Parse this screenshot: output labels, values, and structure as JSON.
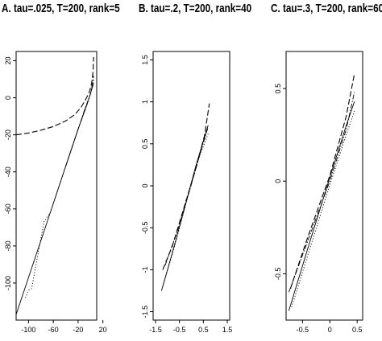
{
  "chart_data": [
    {
      "type": "line",
      "title": "A. tau=.025, T=200, rank=5",
      "xlim": [
        -120,
        10
      ],
      "ylim": [
        -120,
        25
      ],
      "xticks": [
        -100,
        -60,
        -20,
        20
      ],
      "yticks": [
        20,
        0,
        -20,
        -40,
        -60,
        -80,
        -100
      ],
      "series": [
        {
          "style": "solid",
          "points": [
            [
              -120,
              -117
            ],
            [
              -100,
              -97
            ],
            [
              -80,
              -77
            ],
            [
              -60,
              -57
            ],
            [
              -40,
              -37
            ],
            [
              -20,
              -17
            ],
            [
              -5,
              -3
            ],
            [
              5,
              8
            ]
          ]
        },
        {
          "style": "dotted",
          "points": [
            [
              -105,
              -108
            ],
            [
              -100,
              -104
            ],
            [
              -95,
              -103
            ],
            [
              -85,
              -85
            ],
            [
              -75,
              -67
            ],
            [
              -65,
              -62
            ],
            [
              -50,
              -47
            ],
            [
              -30,
              -27
            ],
            [
              -10,
              -7
            ],
            [
              0,
              2
            ],
            [
              5,
              10
            ]
          ]
        },
        {
          "style": "dashdot",
          "points": [
            [
              -40,
              -37
            ],
            [
              -20,
              -17
            ],
            [
              -8,
              -5
            ],
            [
              0,
              2
            ],
            [
              5,
              12
            ]
          ]
        },
        {
          "style": "longdash",
          "points": [
            [
              -120,
              -20
            ],
            [
              -100,
              -19
            ],
            [
              -80,
              -17.5
            ],
            [
              -60,
              -15.5
            ],
            [
              -40,
              -12.5
            ],
            [
              -25,
              -9
            ],
            [
              -15,
              -5
            ],
            [
              -8,
              -1
            ],
            [
              -2,
              3
            ],
            [
              2,
              8
            ],
            [
              4,
              14
            ],
            [
              5,
              22
            ]
          ]
        }
      ]
    },
    {
      "type": "line",
      "title": "B. tau=.2, T=200, rank=40",
      "xlim": [
        -1.6,
        1.6
      ],
      "ylim": [
        -1.6,
        1.6
      ],
      "xticks": [
        -1.5,
        -0.5,
        0.5,
        1.5
      ],
      "yticks": [
        1.5,
        1.0,
        0.5,
        0.0,
        -0.5,
        -1.0,
        -1.5
      ],
      "series": [
        {
          "style": "solid",
          "points": [
            [
              -1.25,
              -1.25
            ],
            [
              -0.8,
              -0.8
            ],
            [
              -0.3,
              -0.28
            ],
            [
              0.2,
              0.25
            ],
            [
              0.7,
              0.72
            ]
          ]
        },
        {
          "style": "dotted",
          "points": [
            [
              -1.2,
              -1.2
            ],
            [
              -0.7,
              -0.72
            ],
            [
              -0.2,
              -0.18
            ],
            [
              0.3,
              0.32
            ],
            [
              0.7,
              0.62
            ]
          ]
        },
        {
          "style": "dashdot",
          "points": [
            [
              -1.1,
              -0.95
            ],
            [
              -0.6,
              -0.55
            ],
            [
              -0.1,
              -0.08
            ],
            [
              0.4,
              0.42
            ],
            [
              0.7,
              0.7
            ]
          ]
        },
        {
          "style": "longdash",
          "points": [
            [
              -1.2,
              -1.0
            ],
            [
              -0.8,
              -0.72
            ],
            [
              -0.3,
              -0.25
            ],
            [
              0.2,
              0.22
            ],
            [
              0.55,
              0.6
            ],
            [
              0.75,
              0.98
            ]
          ]
        }
      ]
    },
    {
      "type": "line",
      "title": "C. tau=.3, T=200, rank=60",
      "xlim": [
        -0.8,
        0.6
      ],
      "ylim": [
        -0.75,
        0.7
      ],
      "xticks": [
        -0.5,
        0.0,
        0.5
      ],
      "yticks": [
        0.5,
        0.0,
        -0.5
      ],
      "series": [
        {
          "style": "solid",
          "points": [
            [
              -0.75,
              -0.7
            ],
            [
              -0.4,
              -0.36
            ],
            [
              0.0,
              0.02
            ],
            [
              0.3,
              0.3
            ],
            [
              0.45,
              0.43
            ]
          ]
        },
        {
          "style": "dotted",
          "points": [
            [
              -0.7,
              -0.68
            ],
            [
              -0.35,
              -0.35
            ],
            [
              0.0,
              -0.02
            ],
            [
              0.3,
              0.25
            ],
            [
              0.45,
              0.38
            ]
          ]
        },
        {
          "style": "dashdot",
          "points": [
            [
              -0.75,
              -0.6
            ],
            [
              -0.4,
              -0.32
            ],
            [
              0.0,
              0.0
            ],
            [
              0.3,
              0.28
            ],
            [
              0.45,
              0.48
            ]
          ]
        },
        {
          "style": "longdash",
          "points": [
            [
              -0.72,
              -0.58
            ],
            [
              -0.4,
              -0.3
            ],
            [
              0.0,
              0.03
            ],
            [
              0.3,
              0.35
            ],
            [
              0.45,
              0.58
            ]
          ]
        }
      ]
    }
  ]
}
